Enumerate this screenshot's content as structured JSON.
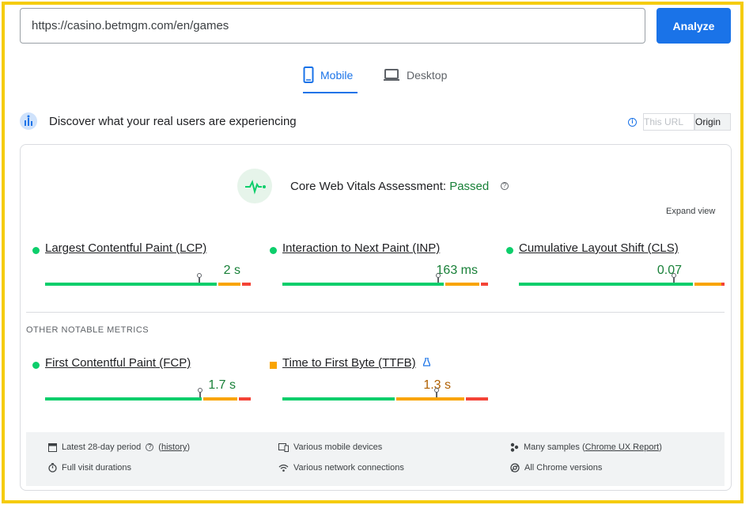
{
  "search": {
    "url": "https://casino.betmgm.com/en/games",
    "button_label": "Analyze"
  },
  "tabs": [
    {
      "label": "Mobile",
      "active": true,
      "icon": "smartphone-icon"
    },
    {
      "label": "Desktop",
      "active": false,
      "icon": "laptop-icon"
    }
  ],
  "discover": {
    "title": "Discover what your real users are experiencing",
    "toggle": {
      "this_url": "This URL",
      "origin": "Origin",
      "selected": "Origin"
    }
  },
  "assessment": {
    "label": "Core Web Vitals Assessment: ",
    "status": "Passed",
    "expand_view": "Expand view"
  },
  "colors": {
    "good": "#0cce6b",
    "needs_improvement": "#f9a400",
    "poor": "#f44336",
    "accent": "#1a73e8",
    "frame": "#f5cc0e"
  },
  "core_metrics": [
    {
      "name": "Largest Contentful Paint (LCP)",
      "value": "2 s",
      "rating": "good"
    },
    {
      "name": "Interaction to Next Paint (INP)",
      "value": "163 ms",
      "rating": "good"
    },
    {
      "name": "Cumulative Layout Shift (CLS)",
      "value": "0.07",
      "rating": "good"
    }
  ],
  "other_metrics_title": "OTHER NOTABLE METRICS",
  "other_metrics": [
    {
      "name": "First Contentful Paint (FCP)",
      "value": "1.7 s",
      "rating": "good"
    },
    {
      "name": "Time to First Byte (TTFB)",
      "value": "1.3 s",
      "rating": "needs-improvement",
      "experimental": true
    }
  ],
  "footer": {
    "period": "Latest 28-day period",
    "history": "history",
    "devices": "Various mobile devices",
    "samples_prefix": "Many samples (",
    "samples_link": "Chrome UX Report",
    "samples_suffix": ")",
    "durations": "Full visit durations",
    "network": "Various network connections",
    "chrome": "All Chrome versions"
  }
}
